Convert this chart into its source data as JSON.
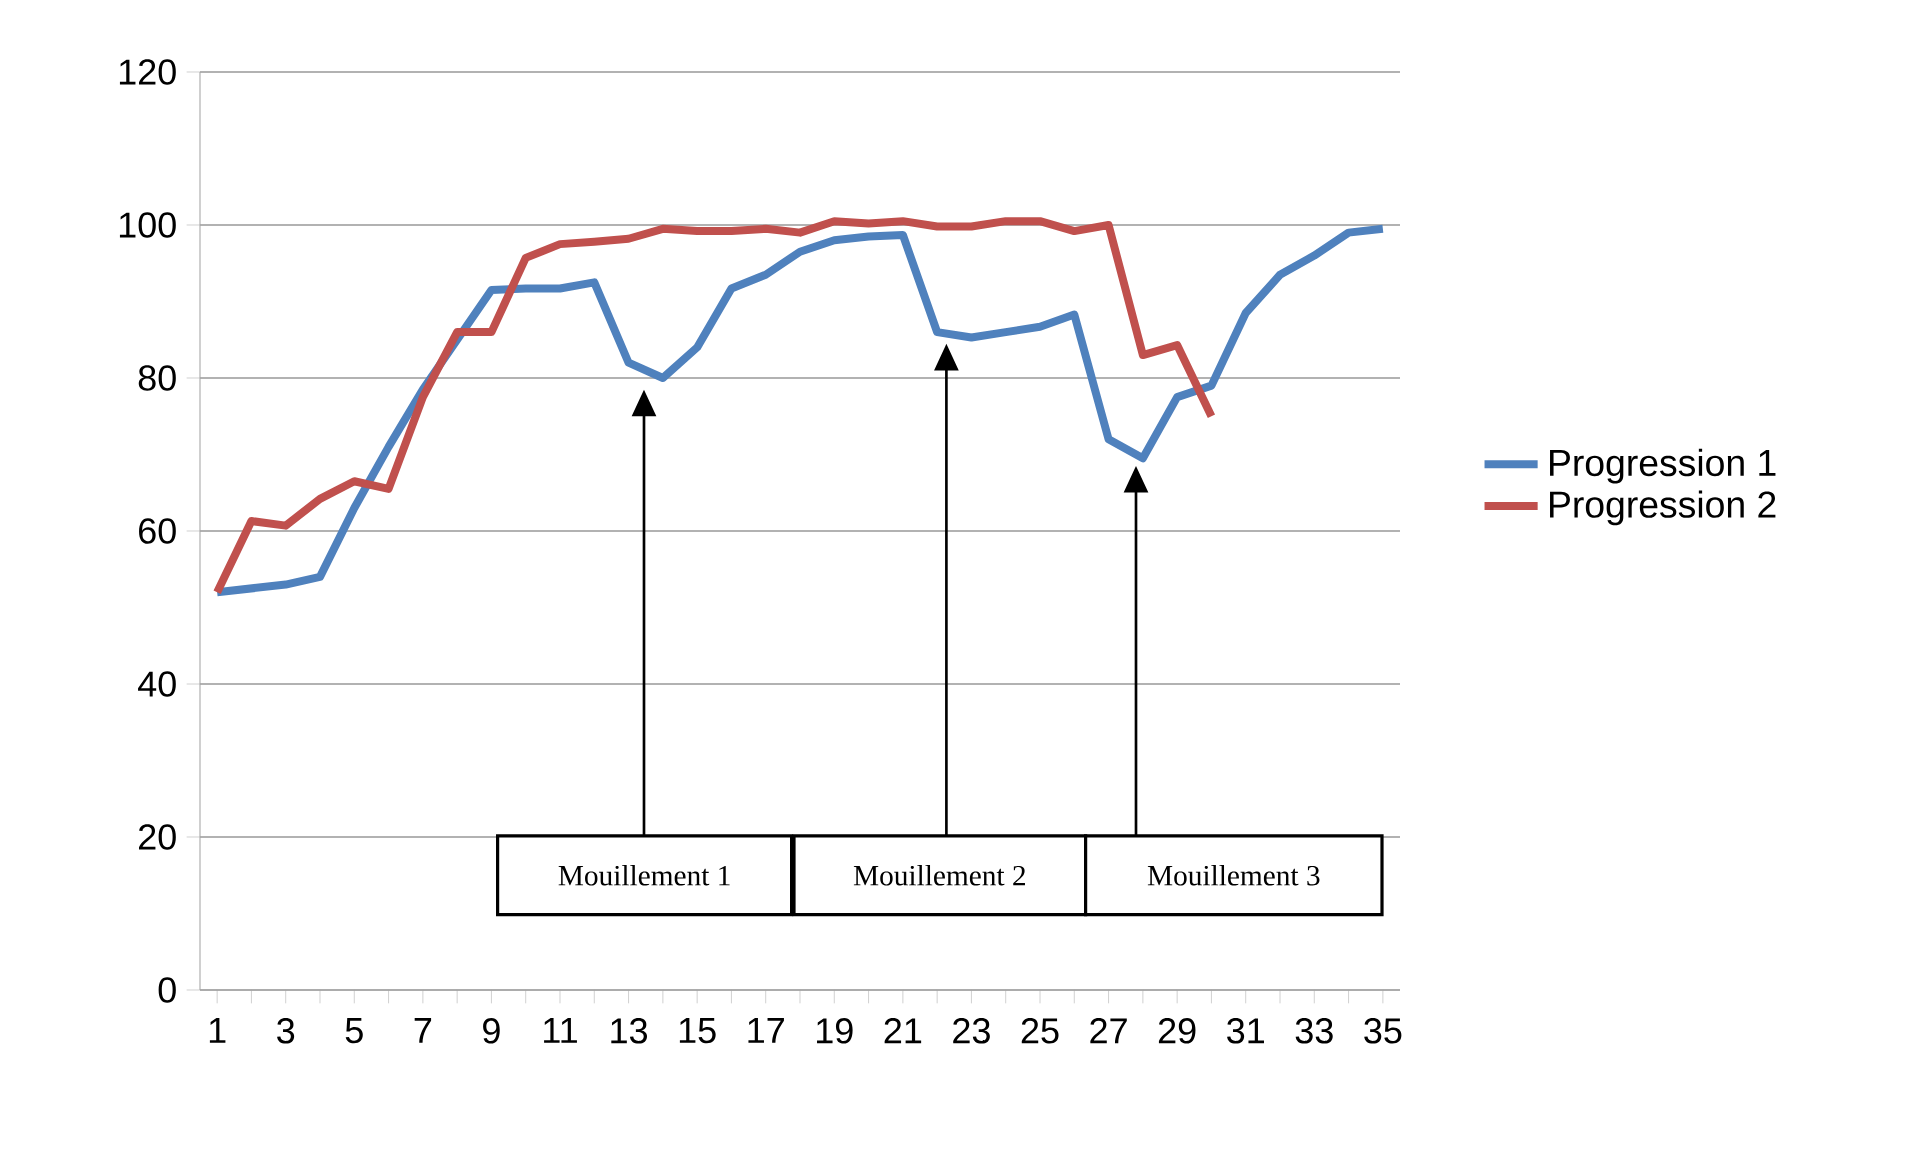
{
  "chart_data": {
    "type": "line",
    "categories": [
      "1",
      null,
      "3",
      null,
      "5",
      null,
      "7",
      null,
      "9",
      null,
      "11",
      null,
      "13",
      null,
      "15",
      null,
      "17",
      null,
      "19",
      null,
      "21",
      null,
      "23",
      null,
      "25",
      null,
      "27",
      null,
      "29",
      null,
      "31",
      null,
      "33",
      null,
      "35"
    ],
    "series": [
      {
        "name": "Progression 1",
        "color": "#4f81bd",
        "values": [
          52,
          52.5,
          53,
          54,
          63,
          71,
          78.5,
          85,
          91.5,
          91.7,
          91.7,
          92.5,
          82,
          80,
          84,
          91.7,
          93.5,
          96.5,
          98,
          98.5,
          98.7,
          86,
          85.3,
          86,
          86.7,
          88.3,
          72,
          69.5,
          77.5,
          79,
          88.5,
          93.5,
          96,
          99,
          99.5
        ]
      },
      {
        "name": "Progression 2",
        "color": "#c0504d",
        "values": [
          52,
          61.3,
          60.7,
          64.2,
          66.5,
          65.5,
          77.5,
          86,
          86,
          95.7,
          97.5,
          97.8,
          98.2,
          99.5,
          99.2,
          99.2,
          99.5,
          99,
          100.5,
          100.2,
          100.5,
          99.8,
          99.8,
          100.5,
          100.5,
          99.2,
          100,
          83,
          84.3,
          75,
          null,
          null,
          null,
          null,
          null
        ]
      }
    ],
    "ylim": [
      0,
      120
    ],
    "yticks": [
      0,
      20,
      40,
      60,
      80,
      100,
      120
    ],
    "grid": "y",
    "legend": "right",
    "marker": "none",
    "line_style": "solid",
    "annotations": [
      "Mouillement 1",
      "Mouillement 2",
      "Mouillement 3"
    ]
  }
}
